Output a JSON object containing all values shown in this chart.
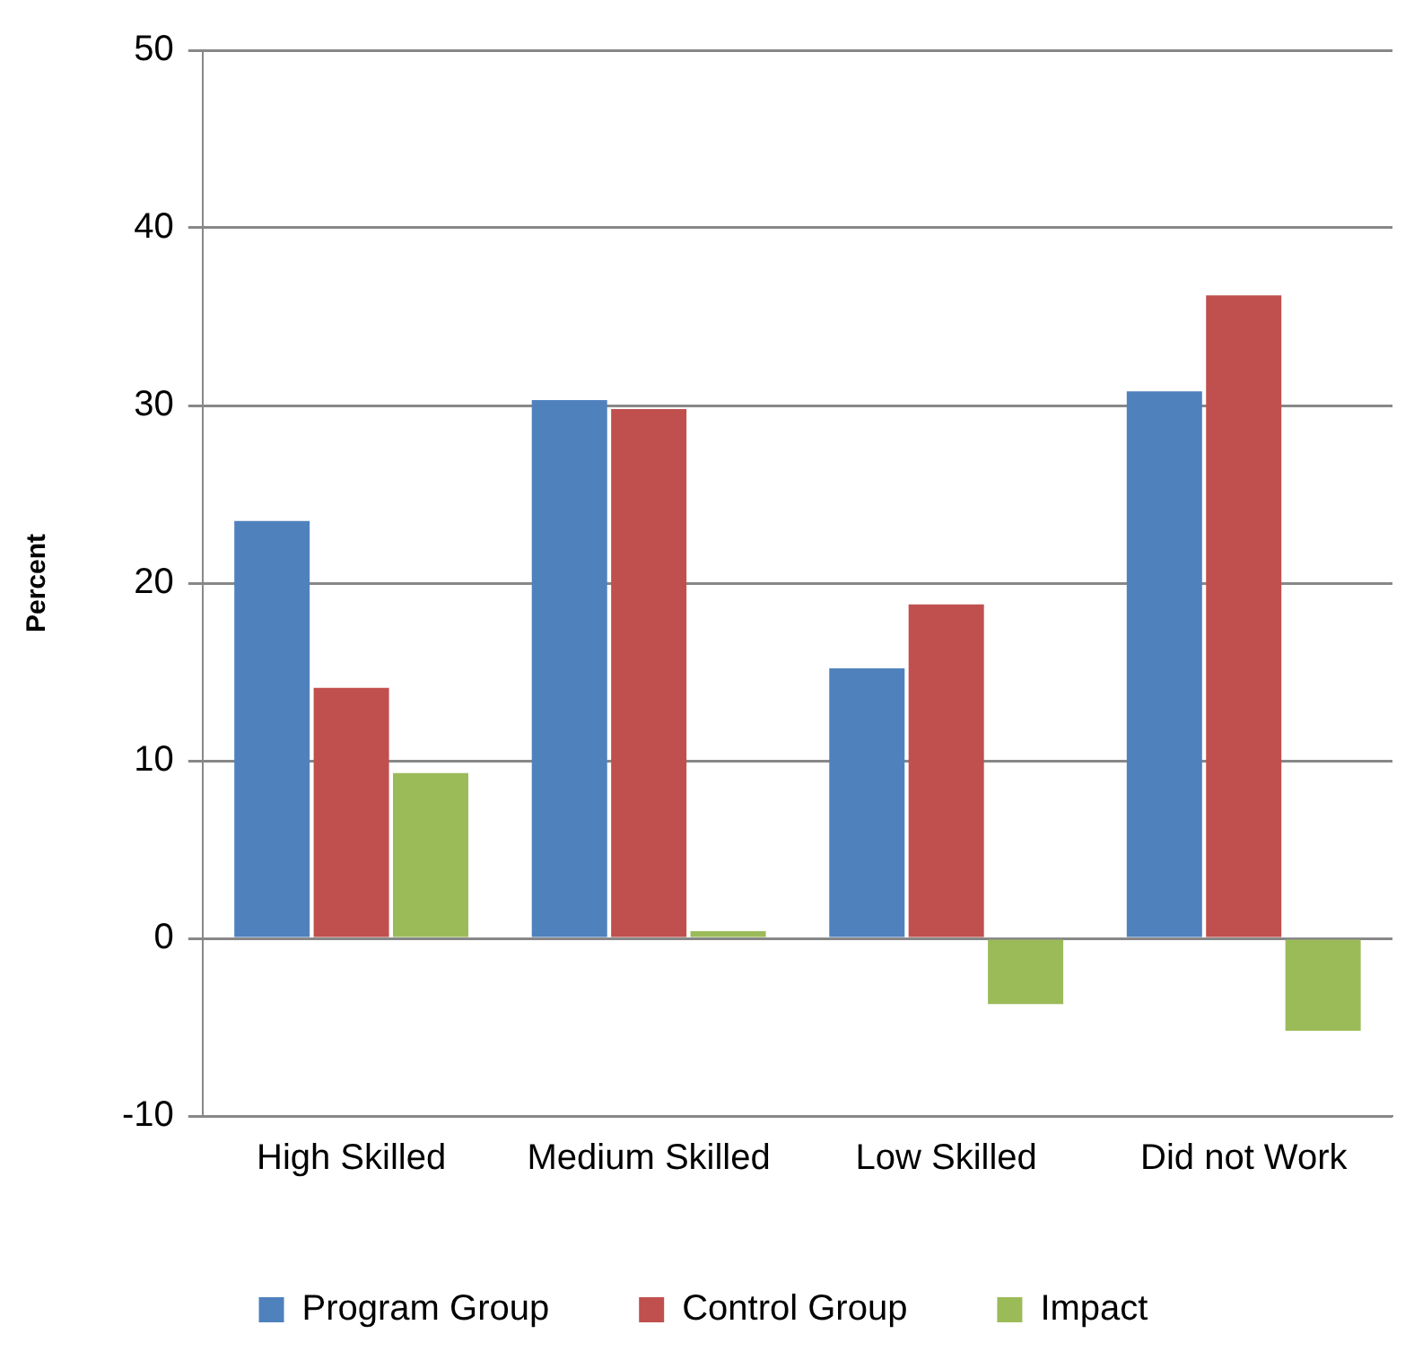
{
  "chart_data": {
    "type": "bar",
    "ylabel": "Percent",
    "categories": [
      "High Skilled",
      "Medium Skilled",
      "Low Skilled",
      "Did not Work"
    ],
    "series": [
      {
        "name": "Program Group",
        "color": "#4f81bd",
        "values": [
          23.5,
          30.3,
          15.2,
          30.8
        ]
      },
      {
        "name": "Control Group",
        "color": "#c0504d",
        "values": [
          14.1,
          29.8,
          18.8,
          36.2
        ]
      },
      {
        "name": "Impact",
        "color": "#9bbb59",
        "values": [
          9.3,
          0.4,
          -3.7,
          -5.2
        ]
      }
    ],
    "ylim": [
      -10,
      50
    ],
    "yticks": [
      -10,
      0,
      10,
      20,
      30,
      40,
      50
    ],
    "grid": "y",
    "legend": "bottom"
  }
}
